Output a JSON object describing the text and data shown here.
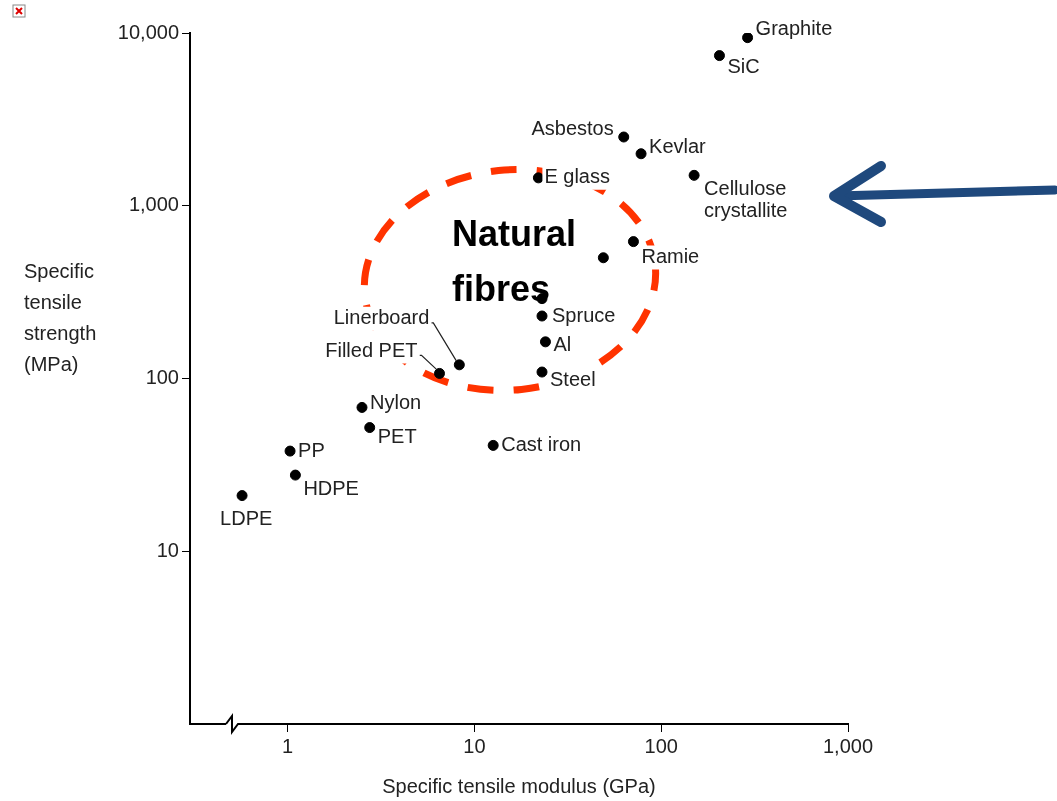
{
  "chart_data": {
    "type": "scatter",
    "xlabel": "Specific tensile modulus (GPa)",
    "ylabel": "Specific tensile strength (MPa)",
    "x": [
      290,
      205,
      63,
      78,
      150,
      22,
      71,
      49,
      23,
      23,
      24,
      23,
      8.3,
      6.5,
      2.5,
      2.75,
      12.6,
      1.03,
      1.1,
      0.57
    ],
    "series": [
      {
        "color": "#000000",
        "values": [
          9400,
          7400,
          2500,
          2000,
          1500,
          1450,
          620,
          500,
          290,
          230,
          163,
          109,
          120,
          107,
          68,
          52,
          41,
          38,
          27.6,
          21
        ]
      }
    ],
    "log": "xy",
    "xlim": [
      0.3,
      1000
    ],
    "ylim": [
      1,
      10000
    ],
    "xticks": [
      1,
      10,
      100,
      {
        "value": 1000,
        "label": "1,000"
      }
    ],
    "yticks": [
      10,
      100,
      {
        "value": 1000,
        "label": "1,000"
      },
      {
        "value": 10000,
        "label": "10,000"
      }
    ],
    "grid": false,
    "legend": false,
    "marker": "circle",
    "annotations": [
      {
        "text": "Graphite",
        "x": 290,
        "y": 9400
      },
      {
        "text": "SiC",
        "x": 205,
        "y": 7400
      },
      {
        "text": "Asbestos",
        "x": 63,
        "y": 2500
      },
      {
        "text": "Kevlar",
        "x": 78,
        "y": 2000
      },
      {
        "text": "Cellulose crystallite",
        "x": 150,
        "y": 1500
      },
      {
        "text": "E glass",
        "x": 22,
        "y": 1450
      },
      {
        "text": "Ramie",
        "x": 71,
        "y": 620
      },
      {
        "text": "Spruce",
        "x": 23,
        "y": 230
      },
      {
        "text": "Al",
        "x": 24,
        "y": 163
      },
      {
        "text": "Steel",
        "x": 23,
        "y": 109
      },
      {
        "text": "Linerboard",
        "x": 8.3,
        "y": 120
      },
      {
        "text": "Filled PET",
        "x": 6.5,
        "y": 107
      },
      {
        "text": "Nylon",
        "x": 2.5,
        "y": 68
      },
      {
        "text": "PET",
        "x": 2.75,
        "y": 52
      },
      {
        "text": "Cast iron",
        "x": 12.6,
        "y": 41
      },
      {
        "text": "PP",
        "x": 1.03,
        "y": 38
      },
      {
        "text": "HDPE",
        "x": 1.1,
        "y": 27.6
      },
      {
        "text": "LDPE",
        "x": 0.57,
        "y": 21
      },
      "Natural fibres"
    ]
  }
}
